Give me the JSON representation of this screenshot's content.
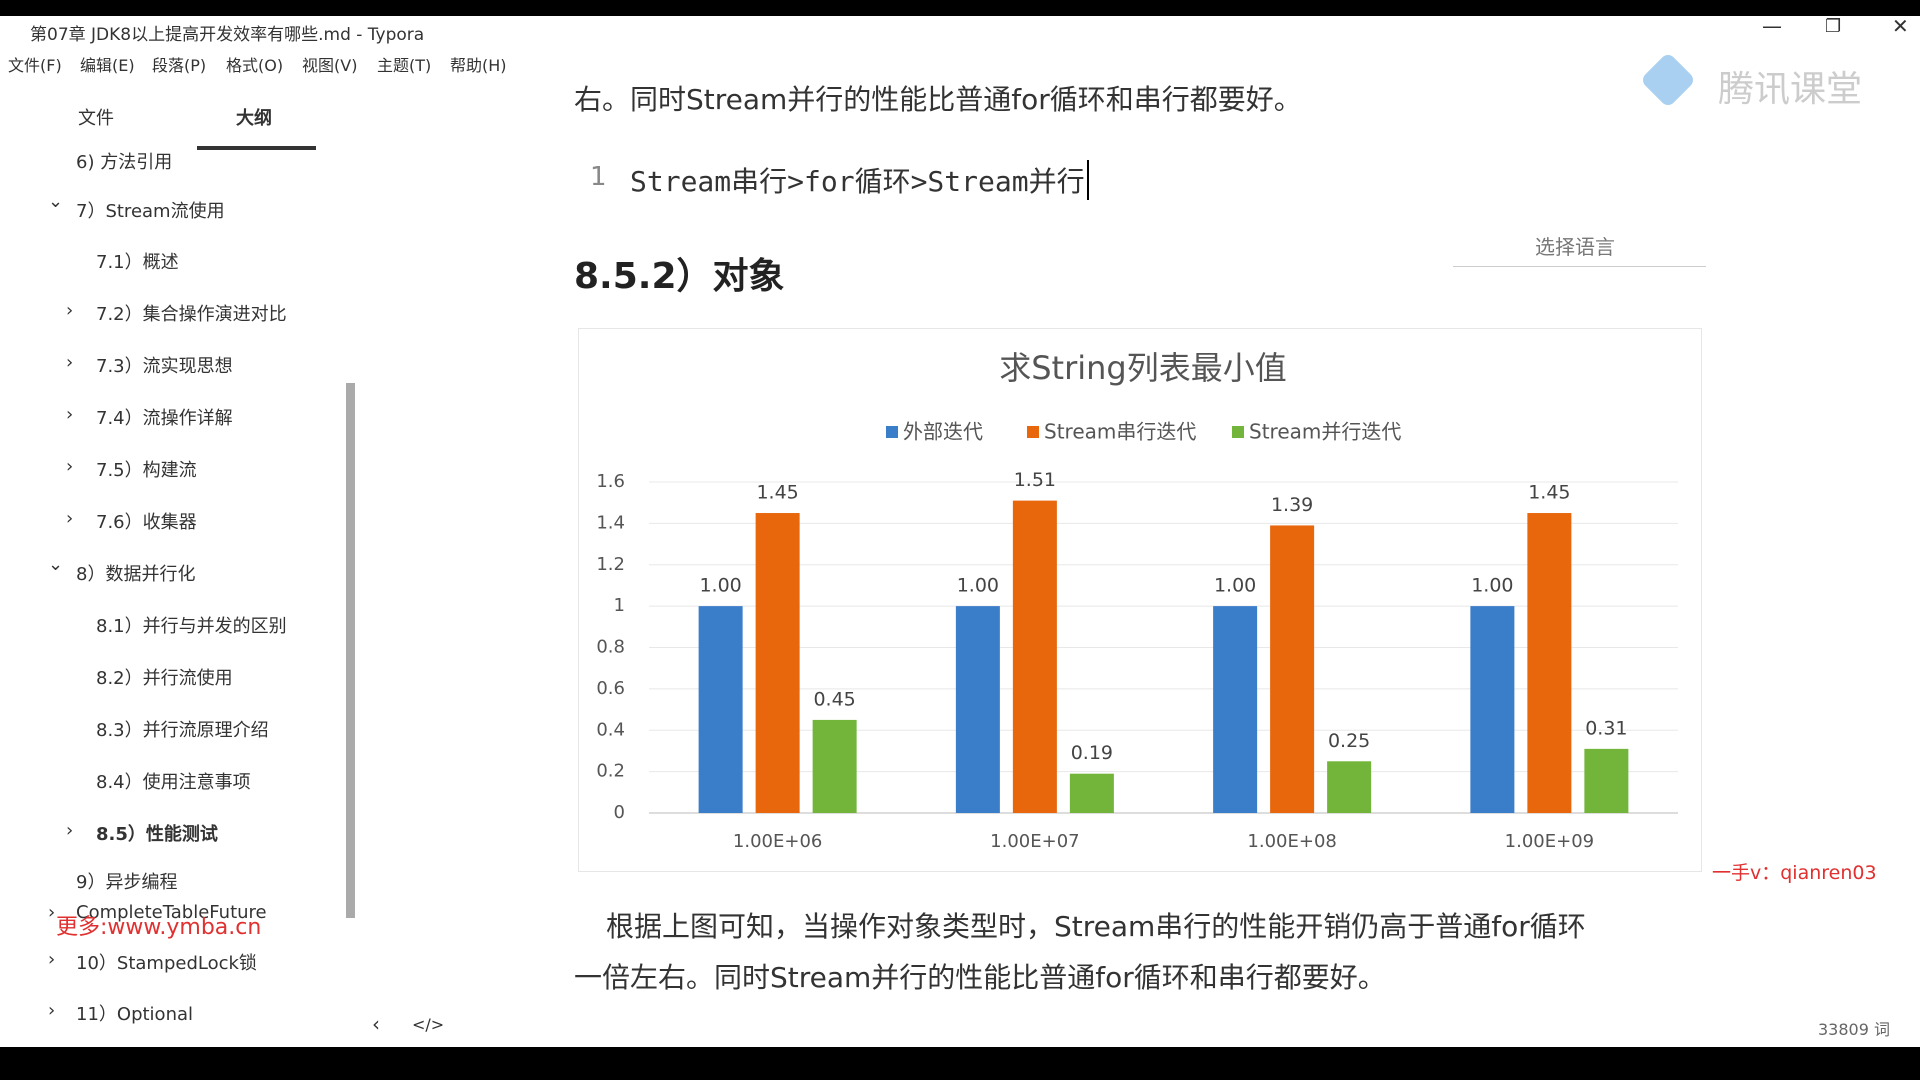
{
  "window": {
    "title": "第07章 JDK8以上提高开发效率有哪些.md - Typora"
  },
  "menu": [
    "文件(F)",
    "编辑(E)",
    "段落(P)",
    "格式(O)",
    "视图(V)",
    "主题(T)",
    "帮助(H)"
  ],
  "sidebar": {
    "tabs": [
      "文件",
      "大纲"
    ],
    "outline": [
      "6) 方法引用",
      "7）Stream流使用",
      "7.1）概述",
      "7.2）集合操作演进对比",
      "7.3）流实现思想",
      "7.4）流操作详解",
      "7.5）构建流",
      "7.6）收集器",
      "8）数据并行化",
      "8.1）并行与并发的区别",
      "8.2）并行流使用",
      "8.3）并行流原理介绍",
      "8.4）使用注意事项",
      "8.5）性能测试",
      "9）异步编程",
      "CompleteTableFuture",
      "10）StampedLock锁",
      "11）Optional"
    ]
  },
  "content": {
    "top_text": "右。同时Stream并行的性能比普通for循环和串行都要好。",
    "code": {
      "line_number": "1",
      "text": "Stream串行>for循环>Stream并行"
    },
    "language_picker": "选择语言",
    "heading": "8.5.2）对象",
    "paragraph": [
      "根据上图可知，当操作对象类型时，Stream串行的性能开销仍高于普通for循环",
      "一倍左右。同时Stream并行的性能比普通for循环和串行都要好。"
    ]
  },
  "watermarks": {
    "brand": "腾讯课堂",
    "contact": "一手v：qianren03",
    "site": "更多:www.ymba.cn"
  },
  "status": {
    "word_count": "33809 词"
  },
  "chart_data": {
    "type": "bar",
    "title": "求String列表最小值",
    "categories": [
      "1.00E+06",
      "1.00E+07",
      "1.00E+08",
      "1.00E+09"
    ],
    "series": [
      {
        "name": "外部迭代",
        "color": "#3a7dc9",
        "values": [
          1,
          1,
          1,
          1
        ],
        "value_labels": [
          "1.00",
          "1.00",
          "1.00",
          "1.00"
        ]
      },
      {
        "name": "Stream串行迭代",
        "color": "#e8660c",
        "values": [
          1.45,
          1.51,
          1.39,
          1.45
        ],
        "value_labels": [
          "1.45",
          "1.51",
          "1.39",
          "1.45"
        ]
      },
      {
        "name": "Stream并行迭代",
        "color": "#72b53a",
        "values": [
          0.45,
          0.19,
          0.25,
          0.31
        ],
        "value_labels": [
          "0.45",
          "0.19",
          "0.25",
          "0.31"
        ]
      }
    ],
    "ylim": [
      0,
      1.6
    ],
    "yticks": [
      0,
      0.2,
      0.4,
      0.6,
      0.8,
      1,
      1.2,
      1.4,
      1.6
    ],
    "grid": true,
    "legend": "top"
  }
}
